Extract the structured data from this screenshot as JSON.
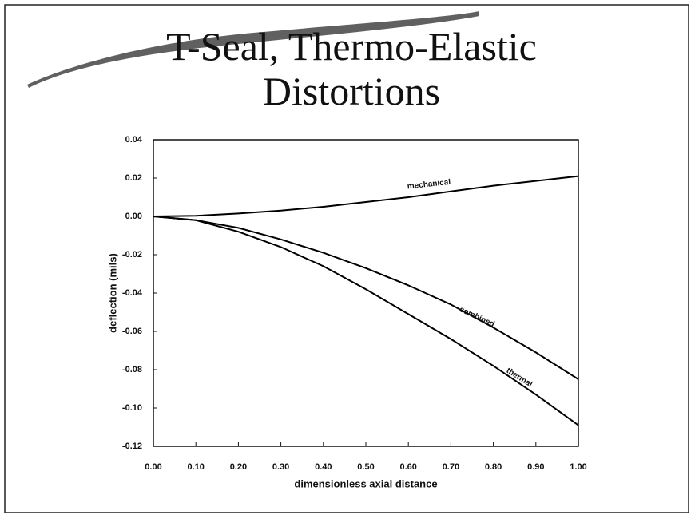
{
  "chart_data": {
    "type": "line",
    "title": "T-Seal, Thermo-Elastic Distortions",
    "x_label": "dimensionless axial distance",
    "y_label": "deflection (mils)",
    "x": [
      0,
      0.1,
      0.2,
      0.3,
      0.4,
      0.5,
      0.6,
      0.7,
      0.8,
      0.9,
      1.0
    ],
    "series": [
      {
        "name": "mechanical",
        "color": "#000000",
        "values": [
          0,
          0.0003,
          0.0015,
          0.003,
          0.005,
          0.0075,
          0.01,
          0.013,
          0.016,
          0.0185,
          0.021
        ]
      },
      {
        "name": "combined",
        "color": "#000000",
        "values": [
          0,
          -0.002,
          -0.006,
          -0.012,
          -0.019,
          -0.027,
          -0.036,
          -0.046,
          -0.058,
          -0.071,
          -0.085
        ]
      },
      {
        "name": "thermal",
        "color": "#000000",
        "values": [
          0,
          -0.002,
          -0.008,
          -0.016,
          -0.026,
          -0.038,
          -0.051,
          -0.064,
          -0.078,
          -0.093,
          -0.109
        ]
      }
    ],
    "xlim": [
      0,
      1
    ],
    "ylim": [
      -0.12,
      0.04
    ],
    "xticks": [
      {
        "value": 0,
        "label": "0.00"
      },
      {
        "value": 0.1,
        "label": "0.10"
      },
      {
        "value": 0.2,
        "label": "0.20"
      },
      {
        "value": 0.3,
        "label": "0.30"
      },
      {
        "value": 0.4,
        "label": "0.40"
      },
      {
        "value": 0.5,
        "label": "0.50"
      },
      {
        "value": 0.6,
        "label": "0.60"
      },
      {
        "value": 0.7,
        "label": "0.70"
      },
      {
        "value": 0.8,
        "label": "0.80"
      },
      {
        "value": 0.9,
        "label": "0.90"
      },
      {
        "value": 1.0,
        "label": "1.00"
      }
    ],
    "yticks": [
      0.04,
      0.02,
      {
        "value": 0,
        "label": "0.00"
      },
      -0.02,
      -0.04,
      -0.06,
      -0.08,
      {
        "value": -0.1,
        "label": "-0.10"
      },
      -0.12
    ],
    "grid": false
  }
}
